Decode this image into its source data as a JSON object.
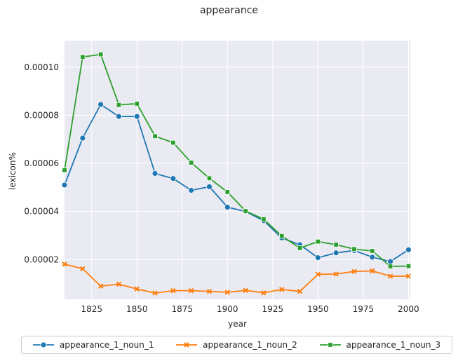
{
  "chart_data": {
    "type": "line",
    "title": "appearance",
    "xlabel": "year",
    "ylabel": "lexicon%",
    "xlim": [
      1810,
      2001
    ],
    "ylim": [
      3.5e-06,
      0.000111
    ],
    "xticks": [
      "1825",
      "1850",
      "1875",
      "1900",
      "1925",
      "1950",
      "1975",
      "2000"
    ],
    "yticks": [
      "0.00002",
      "0.00004",
      "0.00006",
      "0.00008",
      "0.00010"
    ],
    "grid": true,
    "legend_position": "bottom",
    "x": [
      1810,
      1820,
      1830,
      1840,
      1850,
      1860,
      1870,
      1880,
      1890,
      1900,
      1910,
      1920,
      1930,
      1940,
      1950,
      1960,
      1970,
      1980,
      1990,
      2000
    ],
    "series": [
      {
        "name": "appearance_1_noun_1",
        "color": "#1f77b4",
        "marker": "circle",
        "values": [
          5.1e-05,
          7.05e-05,
          8.45e-05,
          7.95e-05,
          7.95e-05,
          5.58e-05,
          5.37e-05,
          4.88e-05,
          5.03e-05,
          4.18e-05,
          4e-05,
          3.62e-05,
          2.9e-05,
          2.62e-05,
          2.08e-05,
          2.28e-05,
          2.38e-05,
          2.1e-05,
          1.92e-05,
          2.41e-05
        ]
      },
      {
        "name": "appearance_1_noun_2",
        "color": "#ff7f0e",
        "marker": "x",
        "values": [
          1.81e-05,
          1.62e-05,
          9e-06,
          9.8e-06,
          7.8e-06,
          6.1e-06,
          7.1e-06,
          7.1e-06,
          6.8e-06,
          6.4e-06,
          7.2e-06,
          6.2e-06,
          7.6e-06,
          6.8e-06,
          1.39e-05,
          1.4e-05,
          1.51e-05,
          1.53e-05,
          1.31e-05,
          1.31e-05
        ]
      },
      {
        "name": "appearance_1_noun_3",
        "color": "#2ca02c",
        "marker": "square",
        "values": [
          5.72e-05,
          0.0001042,
          0.0001053,
          8.43e-05,
          8.48e-05,
          7.13e-05,
          6.86e-05,
          6.03e-05,
          5.38e-05,
          4.81e-05,
          4.02e-05,
          3.68e-05,
          2.98e-05,
          2.48e-05,
          2.75e-05,
          2.62e-05,
          2.44e-05,
          2.36e-05,
          1.72e-05,
          1.73e-05
        ]
      }
    ]
  }
}
